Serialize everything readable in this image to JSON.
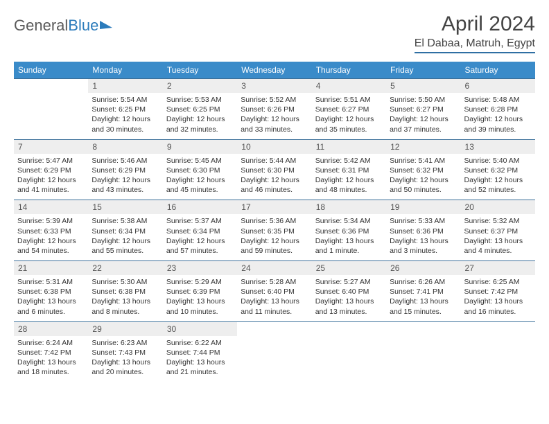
{
  "logo": {
    "part1": "General",
    "part2": "Blue"
  },
  "title": "April 2024",
  "location": "El Dabaa, Matruh, Egypt",
  "colors": {
    "header_bg": "#3a8bc9",
    "header_text": "#ffffff",
    "daynum_bg": "#eeeeee",
    "border": "#3a6f99",
    "logo_gray": "#5a5a5a",
    "logo_blue": "#2b7bbb"
  },
  "day_headers": [
    "Sunday",
    "Monday",
    "Tuesday",
    "Wednesday",
    "Thursday",
    "Friday",
    "Saturday"
  ],
  "weeks": [
    {
      "nums": [
        "",
        "1",
        "2",
        "3",
        "4",
        "5",
        "6"
      ],
      "info": [
        "",
        "Sunrise: 5:54 AM\nSunset: 6:25 PM\nDaylight: 12 hours and 30 minutes.",
        "Sunrise: 5:53 AM\nSunset: 6:25 PM\nDaylight: 12 hours and 32 minutes.",
        "Sunrise: 5:52 AM\nSunset: 6:26 PM\nDaylight: 12 hours and 33 minutes.",
        "Sunrise: 5:51 AM\nSunset: 6:27 PM\nDaylight: 12 hours and 35 minutes.",
        "Sunrise: 5:50 AM\nSunset: 6:27 PM\nDaylight: 12 hours and 37 minutes.",
        "Sunrise: 5:48 AM\nSunset: 6:28 PM\nDaylight: 12 hours and 39 minutes."
      ]
    },
    {
      "nums": [
        "7",
        "8",
        "9",
        "10",
        "11",
        "12",
        "13"
      ],
      "info": [
        "Sunrise: 5:47 AM\nSunset: 6:29 PM\nDaylight: 12 hours and 41 minutes.",
        "Sunrise: 5:46 AM\nSunset: 6:29 PM\nDaylight: 12 hours and 43 minutes.",
        "Sunrise: 5:45 AM\nSunset: 6:30 PM\nDaylight: 12 hours and 45 minutes.",
        "Sunrise: 5:44 AM\nSunset: 6:30 PM\nDaylight: 12 hours and 46 minutes.",
        "Sunrise: 5:42 AM\nSunset: 6:31 PM\nDaylight: 12 hours and 48 minutes.",
        "Sunrise: 5:41 AM\nSunset: 6:32 PM\nDaylight: 12 hours and 50 minutes.",
        "Sunrise: 5:40 AM\nSunset: 6:32 PM\nDaylight: 12 hours and 52 minutes."
      ]
    },
    {
      "nums": [
        "14",
        "15",
        "16",
        "17",
        "18",
        "19",
        "20"
      ],
      "info": [
        "Sunrise: 5:39 AM\nSunset: 6:33 PM\nDaylight: 12 hours and 54 minutes.",
        "Sunrise: 5:38 AM\nSunset: 6:34 PM\nDaylight: 12 hours and 55 minutes.",
        "Sunrise: 5:37 AM\nSunset: 6:34 PM\nDaylight: 12 hours and 57 minutes.",
        "Sunrise: 5:36 AM\nSunset: 6:35 PM\nDaylight: 12 hours and 59 minutes.",
        "Sunrise: 5:34 AM\nSunset: 6:36 PM\nDaylight: 13 hours and 1 minute.",
        "Sunrise: 5:33 AM\nSunset: 6:36 PM\nDaylight: 13 hours and 3 minutes.",
        "Sunrise: 5:32 AM\nSunset: 6:37 PM\nDaylight: 13 hours and 4 minutes."
      ]
    },
    {
      "nums": [
        "21",
        "22",
        "23",
        "24",
        "25",
        "26",
        "27"
      ],
      "info": [
        "Sunrise: 5:31 AM\nSunset: 6:38 PM\nDaylight: 13 hours and 6 minutes.",
        "Sunrise: 5:30 AM\nSunset: 6:38 PM\nDaylight: 13 hours and 8 minutes.",
        "Sunrise: 5:29 AM\nSunset: 6:39 PM\nDaylight: 13 hours and 10 minutes.",
        "Sunrise: 5:28 AM\nSunset: 6:40 PM\nDaylight: 13 hours and 11 minutes.",
        "Sunrise: 5:27 AM\nSunset: 6:40 PM\nDaylight: 13 hours and 13 minutes.",
        "Sunrise: 6:26 AM\nSunset: 7:41 PM\nDaylight: 13 hours and 15 minutes.",
        "Sunrise: 6:25 AM\nSunset: 7:42 PM\nDaylight: 13 hours and 16 minutes."
      ]
    },
    {
      "nums": [
        "28",
        "29",
        "30",
        "",
        "",
        "",
        ""
      ],
      "info": [
        "Sunrise: 6:24 AM\nSunset: 7:42 PM\nDaylight: 13 hours and 18 minutes.",
        "Sunrise: 6:23 AM\nSunset: 7:43 PM\nDaylight: 13 hours and 20 minutes.",
        "Sunrise: 6:22 AM\nSunset: 7:44 PM\nDaylight: 13 hours and 21 minutes.",
        "",
        "",
        "",
        ""
      ]
    }
  ]
}
